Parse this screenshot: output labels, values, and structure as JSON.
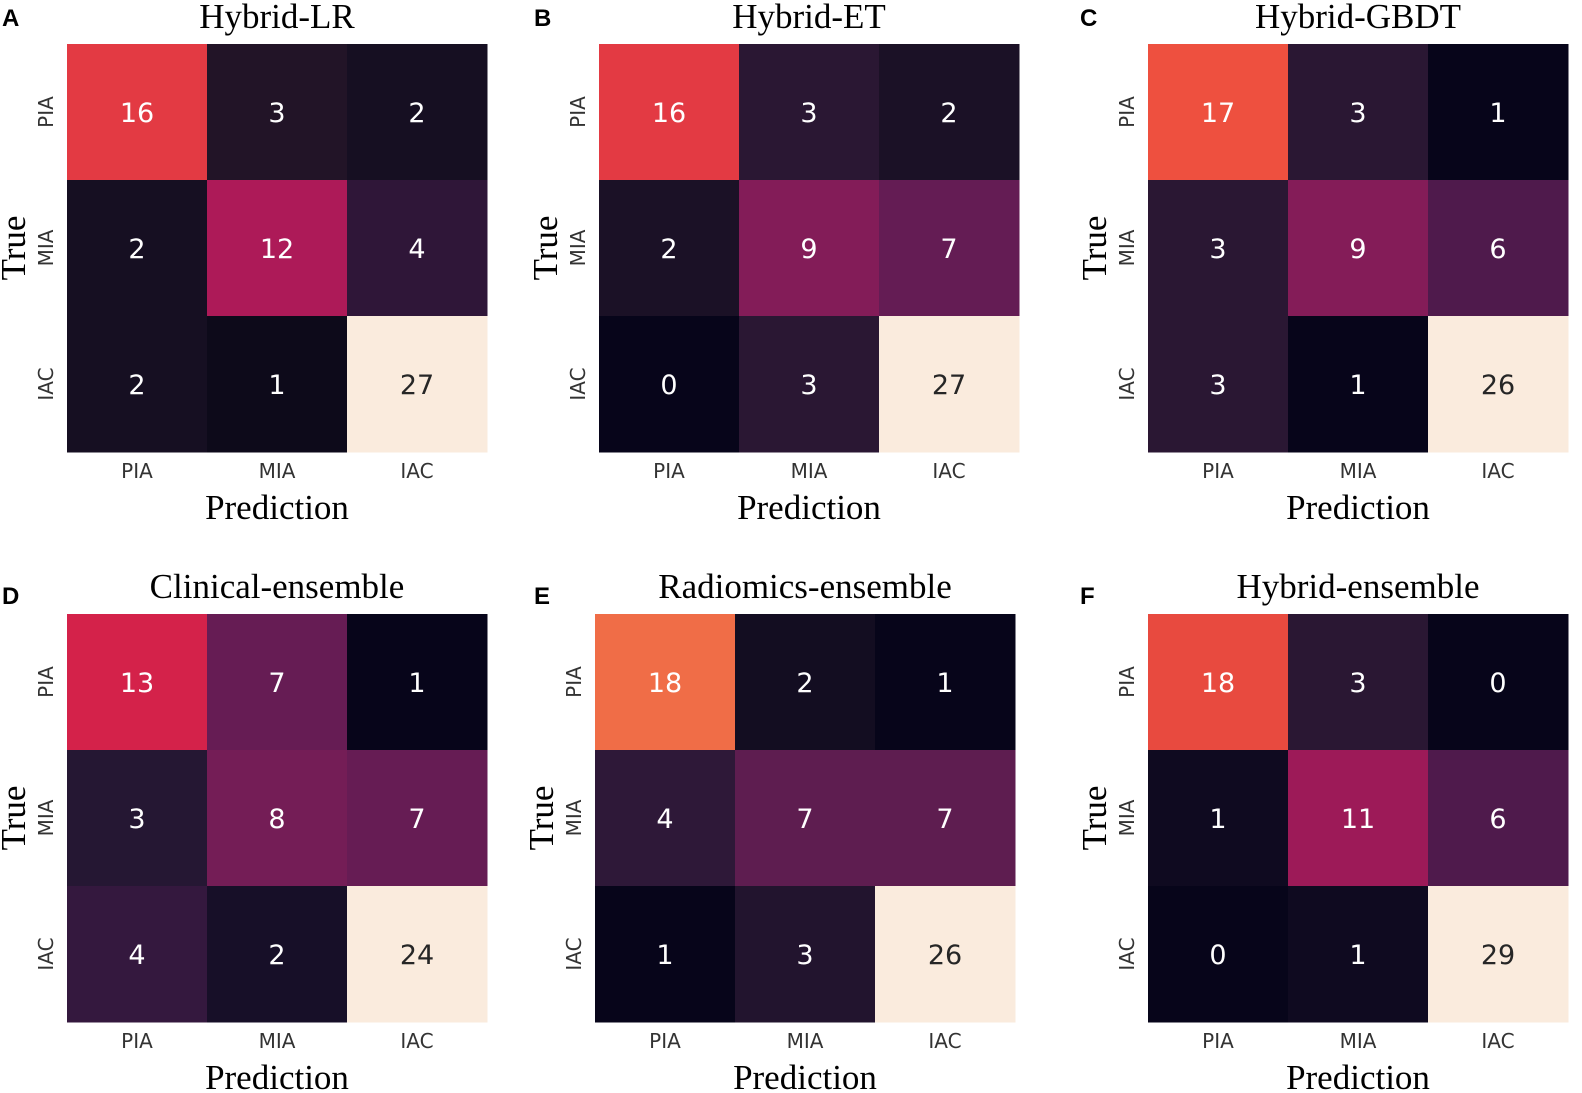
{
  "chart_data": [
    {
      "type": "heatmap",
      "panel": "A",
      "title": "Hybrid-LR",
      "xlabel": "Prediction",
      "ylabel": "True",
      "x_ticks": [
        "PIA",
        "MIA",
        "IAC"
      ],
      "y_ticks": [
        "PIA",
        "MIA",
        "IAC"
      ],
      "matrix": [
        [
          16,
          3,
          2
        ],
        [
          2,
          12,
          4
        ],
        [
          2,
          1,
          27
        ]
      ],
      "colors": [
        [
          "#e33a43",
          "#221427",
          "#160f22"
        ],
        [
          "#160f22",
          "#ad1a58",
          "#2f1638"
        ],
        [
          "#160f22",
          "#0d0a1a",
          "#faebdd"
        ]
      ]
    },
    {
      "type": "heatmap",
      "panel": "B",
      "title": "Hybrid-ET",
      "xlabel": "Prediction",
      "ylabel": "True",
      "x_ticks": [
        "PIA",
        "MIA",
        "IAC"
      ],
      "y_ticks": [
        "PIA",
        "MIA",
        "IAC"
      ],
      "matrix": [
        [
          16,
          3,
          2
        ],
        [
          2,
          9,
          7
        ],
        [
          0,
          3,
          27
        ]
      ],
      "colors": [
        [
          "#e33a43",
          "#2a1733",
          "#1b1126"
        ],
        [
          "#1b1126",
          "#831c58",
          "#641c54"
        ],
        [
          "#07051a",
          "#2a1733",
          "#faebdd"
        ]
      ]
    },
    {
      "type": "heatmap",
      "panel": "C",
      "title": "Hybrid-GBDT",
      "xlabel": "Prediction",
      "ylabel": "True",
      "x_ticks": [
        "PIA",
        "MIA",
        "IAC"
      ],
      "y_ticks": [
        "PIA",
        "MIA",
        "IAC"
      ],
      "matrix": [
        [
          17,
          3,
          1
        ],
        [
          3,
          9,
          6
        ],
        [
          3,
          1,
          26
        ]
      ],
      "colors": [
        [
          "#ee503f",
          "#2a1733",
          "#07051a"
        ],
        [
          "#2a1733",
          "#841c58",
          "#4f1a4c"
        ],
        [
          "#2a1733",
          "#07051a",
          "#faebdd"
        ]
      ]
    },
    {
      "type": "heatmap",
      "panel": "D",
      "title": "Clinical-ensemble",
      "xlabel": "Prediction",
      "ylabel": "True",
      "x_ticks": [
        "PIA",
        "MIA",
        "IAC"
      ],
      "y_ticks": [
        "PIA",
        "MIA",
        "IAC"
      ],
      "matrix": [
        [
          13,
          7,
          1
        ],
        [
          3,
          8,
          7
        ],
        [
          4,
          2,
          24
        ]
      ],
      "colors": [
        [
          "#d4224a",
          "#661c54",
          "#07051a"
        ],
        [
          "#251733",
          "#741d56",
          "#661c54"
        ],
        [
          "#34183e",
          "#170f28",
          "#faebdd"
        ]
      ]
    },
    {
      "type": "heatmap",
      "panel": "E",
      "title": "Radiomics-ensemble",
      "xlabel": "Prediction",
      "ylabel": "True",
      "x_ticks": [
        "PIA",
        "MIA",
        "IAC"
      ],
      "y_ticks": [
        "PIA",
        "MIA",
        "IAC"
      ],
      "matrix": [
        [
          18,
          2,
          1
        ],
        [
          4,
          7,
          7
        ],
        [
          1,
          3,
          26
        ]
      ],
      "colors": [
        [
          "#f06d47",
          "#130d21",
          "#07051a"
        ],
        [
          "#2e1838",
          "#5e1d50",
          "#5e1d50"
        ],
        [
          "#07051a",
          "#22142e",
          "#faebdd"
        ]
      ]
    },
    {
      "type": "heatmap",
      "panel": "F",
      "title": "Hybrid-ensemble",
      "xlabel": "Prediction",
      "ylabel": "True",
      "x_ticks": [
        "PIA",
        "MIA",
        "IAC"
      ],
      "y_ticks": [
        "PIA",
        "MIA",
        "IAC"
      ],
      "matrix": [
        [
          18,
          3,
          0
        ],
        [
          1,
          11,
          6
        ],
        [
          0,
          1,
          29
        ]
      ],
      "colors": [
        [
          "#e84a3f",
          "#2a1733",
          "#07051a"
        ],
        [
          "#0f0a20",
          "#9d1a58",
          "#4f1a4c"
        ],
        [
          "#07051a",
          "#0f0a20",
          "#faebdd"
        ]
      ]
    }
  ]
}
